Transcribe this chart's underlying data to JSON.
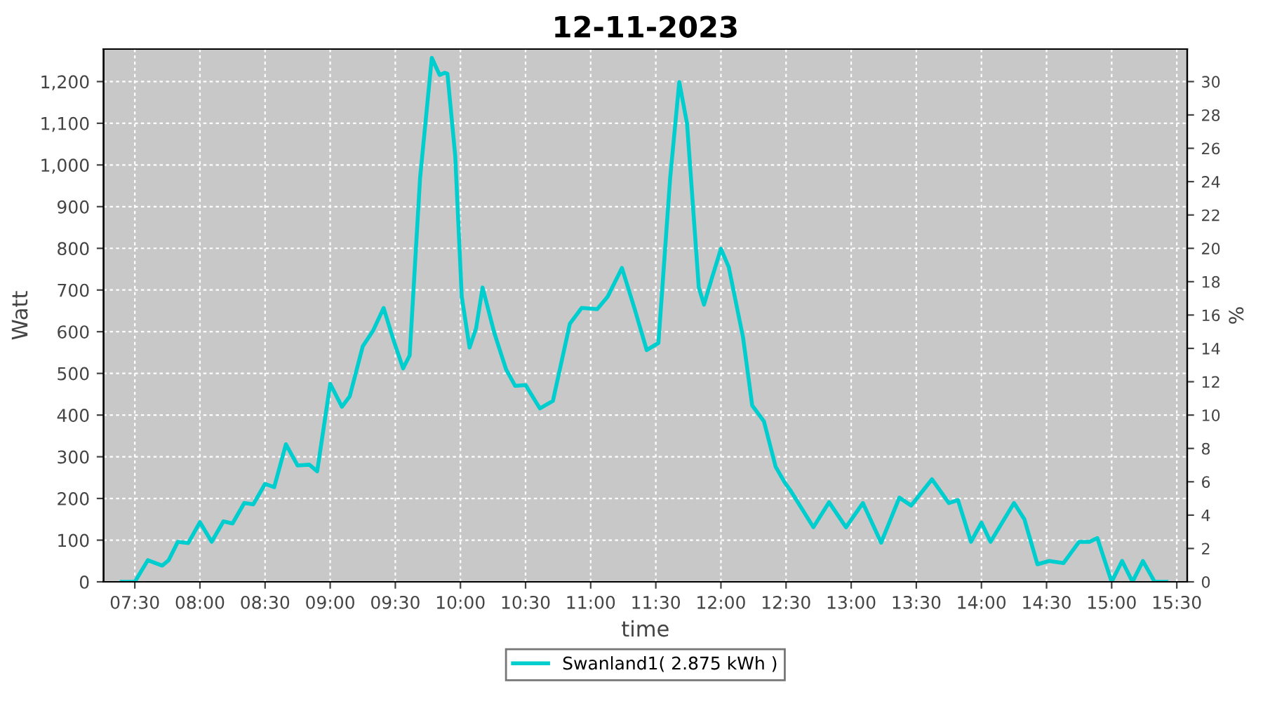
{
  "chart_data": {
    "type": "line",
    "title": "12-11-2023",
    "xlabel": "time",
    "ylabel": "Watt",
    "y2label": "%",
    "x": [
      7.4,
      7.5,
      7.6,
      7.71,
      7.76,
      7.83,
      7.91,
      8.0,
      8.09,
      8.18,
      8.25,
      8.34,
      8.41,
      8.5,
      8.57,
      8.66,
      8.75,
      8.84,
      8.9,
      9.0,
      9.09,
      9.15,
      9.25,
      9.33,
      9.41,
      9.49,
      9.56,
      9.61,
      9.69,
      9.78,
      9.84,
      9.88,
      9.9,
      9.96,
      10.01,
      10.07,
      10.12,
      10.17,
      10.26,
      10.35,
      10.42,
      10.5,
      10.61,
      10.71,
      10.84,
      10.93,
      11.05,
      11.13,
      11.24,
      11.34,
      11.43,
      11.52,
      11.61,
      11.68,
      11.74,
      11.83,
      11.87,
      11.93,
      12.0,
      12.06,
      12.17,
      12.24,
      12.33,
      12.42,
      12.49,
      12.53,
      12.71,
      12.83,
      12.96,
      13.09,
      13.23,
      13.37,
      13.46,
      13.62,
      13.75,
      13.82,
      13.92,
      14.0,
      14.07,
      14.25,
      14.33,
      14.43,
      14.52,
      14.63,
      14.75,
      14.83,
      14.89,
      15.0,
      15.08,
      15.16,
      15.24,
      15.33,
      15.42
    ],
    "series": [
      {
        "name": "Swanland1( 2.875 kWh )",
        "color": "#00cdcd",
        "values": [
          0,
          0,
          52,
          39,
          52,
          96,
          93,
          143,
          96,
          145,
          140,
          189,
          186,
          235,
          227,
          330,
          279,
          281,
          265,
          475,
          420,
          445,
          565,
          603,
          657,
          576,
          512,
          543,
          968,
          1257,
          1216,
          1221,
          1219,
          1022,
          684,
          562,
          608,
          706,
          597,
          510,
          470,
          472,
          416,
          434,
          619,
          657,
          654,
          684,
          753,
          652,
          556,
          573,
          968,
          1199,
          1099,
          706,
          665,
          728,
          799,
          755,
          586,
          423,
          385,
          276,
          238,
          221,
          131,
          191,
          131,
          189,
          94,
          202,
          183,
          246,
          189,
          196,
          96,
          142,
          96,
          189,
          150,
          42,
          50,
          45,
          96,
          96,
          105,
          0,
          50,
          0,
          50,
          0,
          0
        ]
      }
    ],
    "xlim": [
      7.26,
      15.58
    ],
    "xticks": [
      {
        "value": 7.5,
        "label": "07:30"
      },
      {
        "value": 8,
        "label": "08:00"
      },
      {
        "value": 8.5,
        "label": "08:30"
      },
      {
        "value": 9,
        "label": "09:00"
      },
      {
        "value": 9.5,
        "label": "09:30"
      },
      {
        "value": 10,
        "label": "10:00"
      },
      {
        "value": 10.5,
        "label": "10:30"
      },
      {
        "value": 11,
        "label": "11:00"
      },
      {
        "value": 11.5,
        "label": "11:30"
      },
      {
        "value": 12,
        "label": "12:00"
      },
      {
        "value": 12.5,
        "label": "12:30"
      },
      {
        "value": 13,
        "label": "13:00"
      },
      {
        "value": 13.5,
        "label": "13:30"
      },
      {
        "value": 14,
        "label": "14:00"
      },
      {
        "value": 14.5,
        "label": "14:30"
      },
      {
        "value": 15,
        "label": "15:00"
      },
      {
        "value": 15.5,
        "label": "15:30"
      }
    ],
    "ylim": [
      0,
      1278
    ],
    "yticks": [
      0,
      100,
      200,
      300,
      400,
      500,
      600,
      700,
      800,
      900,
      {
        "value": 1000,
        "label": "1,000"
      },
      {
        "value": 1100,
        "label": "1,100"
      },
      {
        "value": 1200,
        "label": "1,200"
      }
    ],
    "y2lim": [
      0,
      31.95
    ],
    "y2ticks": [
      0,
      2,
      4,
      6,
      8,
      10,
      12,
      14,
      16,
      18,
      20,
      22,
      24,
      26,
      28,
      30
    ],
    "grid": true,
    "legend": "bottom",
    "line_style": "solid",
    "marker": "none"
  }
}
